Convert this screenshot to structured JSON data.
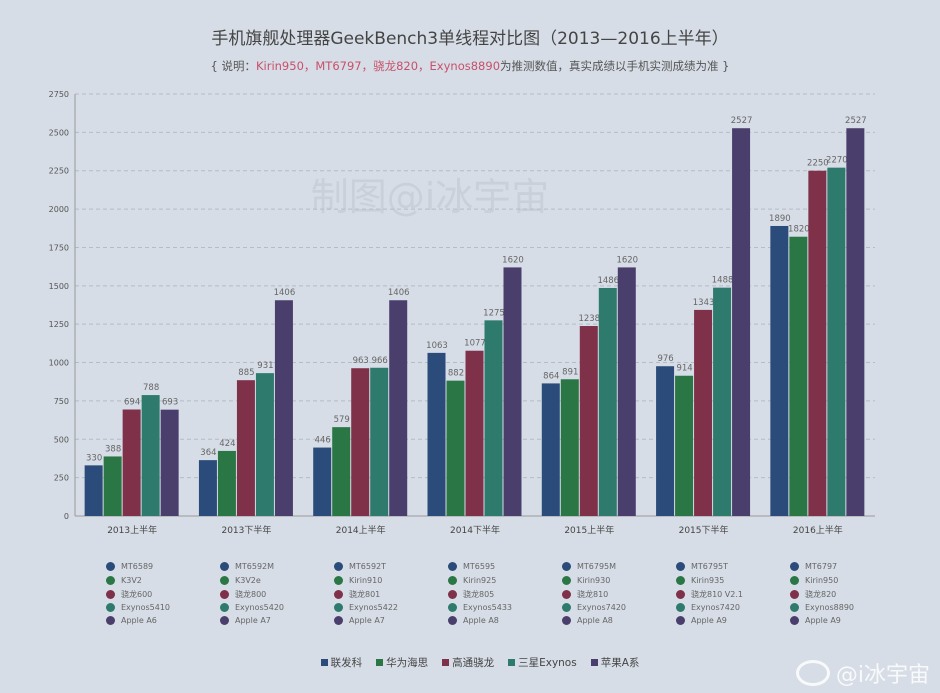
{
  "title": "手机旗舰处理器GeekBench3单线程对比图（2013—2016上半年）",
  "subtitle": {
    "prefix": "{ 说明：",
    "highlight": "Kirin950，MT6797，骁龙820，Exynos8890",
    "suffix": "为推测数值，真实成绩以手机实测成绩为准 }"
  },
  "watermark": "制图@i冰宇宙",
  "weibo_handle": "@i冰宇宙",
  "colors": {
    "联发科": "#2b4b7a",
    "华为海思": "#2a7645",
    "高通骁龙": "#7e3149",
    "三星Exynos": "#2e7a6d",
    "苹果A系": "#4a3f6c"
  },
  "chart_data": {
    "type": "bar",
    "title": "手机旗舰处理器GeekBench3单线程对比图（2013—2016上半年）",
    "categories": [
      "2013上半年",
      "2013下半年",
      "2014上半年",
      "2014下半年",
      "2015上半年",
      "2015下半年",
      "2016上半年"
    ],
    "ylim": [
      0,
      2750
    ],
    "yticks": [
      0,
      250,
      500,
      750,
      1000,
      1250,
      1500,
      1750,
      2000,
      2250,
      2500,
      2750
    ],
    "grid": true,
    "legend": "bottom",
    "series": [
      {
        "name": "联发科",
        "color": "#2b4b7a",
        "values": [
          330,
          364,
          446,
          1063,
          864,
          976,
          1890
        ],
        "chips": [
          "MT6589",
          "MT6592M",
          "MT6592T",
          "MT6595",
          "MT6795M",
          "MT6795T",
          "MT6797"
        ]
      },
      {
        "name": "华为海思",
        "color": "#2a7645",
        "values": [
          388,
          424,
          579,
          882,
          891,
          914,
          1820
        ],
        "chips": [
          "K3V2",
          "K3V2e",
          "Kirin910",
          "Kirin925",
          "Kirin930",
          "Kirin935",
          "Kirin950"
        ]
      },
      {
        "name": "高通骁龙",
        "color": "#7e3149",
        "values": [
          694,
          885,
          963,
          1077,
          1238,
          1343,
          2250
        ],
        "chips": [
          "骁龙600",
          "骁龙800",
          "骁龙801",
          "骁龙805",
          "骁龙810",
          "骁龙810 V2.1",
          "骁龙820"
        ]
      },
      {
        "name": "三星Exynos",
        "color": "#2e7a6d",
        "values": [
          788,
          931,
          966,
          1275,
          1486,
          1488,
          2270
        ],
        "chips": [
          "Exynos5410",
          "Exynos5420",
          "Exynos5422",
          "Exynos5433",
          "Exynos7420",
          "Exynos7420",
          "Exynos8890"
        ]
      },
      {
        "name": "苹果A系",
        "color": "#4a3f6c",
        "values": [
          693,
          1406,
          1406,
          1620,
          1620,
          2527,
          2527
        ],
        "chips": [
          "Apple A6",
          "Apple A7",
          "Apple A7",
          "Apple A8",
          "Apple A8",
          "Apple A9",
          "Apple A9"
        ]
      }
    ]
  }
}
